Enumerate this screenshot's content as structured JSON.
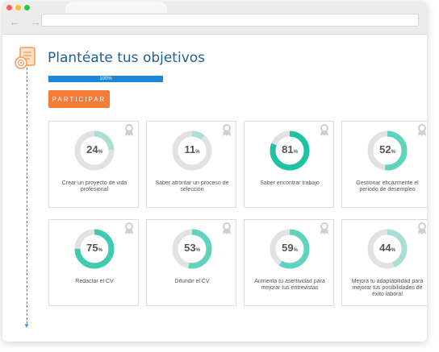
{
  "browser": {
    "nav_arrows": "← →"
  },
  "section": {
    "title": "Plantéate tus objetivos",
    "progress_label": "100%",
    "progress_value": 1.0,
    "button_label": "PARTICIPAR"
  },
  "colors": {
    "accent_teal": "#1fc3a4",
    "ring_track": "#e2e2e2",
    "button_orange": "#f47c36",
    "title_blue": "#1f5e96",
    "progress_blue": "#1d86d6"
  },
  "cards": [
    {
      "percent": 24,
      "symbol": "%",
      "label": "Crear un proyecto de vida profesional",
      "color": "#a8e0d6"
    },
    {
      "percent": 11,
      "symbol": "%",
      "label": "Saber afrontar un proceso de selección",
      "color": "#a8e0d6"
    },
    {
      "percent": 81,
      "symbol": "%",
      "label": "Saber encontrar trabajo",
      "color": "#1fc3a4"
    },
    {
      "percent": 52,
      "symbol": "%",
      "label": "Gestionar eficazmente el periodo de desempleo",
      "color": "#5fd3bd"
    },
    {
      "percent": 75,
      "symbol": "%",
      "label": "Redactar el CV",
      "color": "#3fcbb1"
    },
    {
      "percent": 53,
      "symbol": "%",
      "label": "Difundir el CV",
      "color": "#5fd3bd"
    },
    {
      "percent": 59,
      "symbol": "%",
      "label": "Aumenta tu asertividad para mejorar tus entrevistas",
      "color": "#5fd3bd"
    },
    {
      "percent": 44,
      "symbol": "%",
      "label": "Mejora tu adaptabilidad para mejorar tus posibilidades de éxito laboral",
      "color": "#a8e0d6"
    }
  ]
}
